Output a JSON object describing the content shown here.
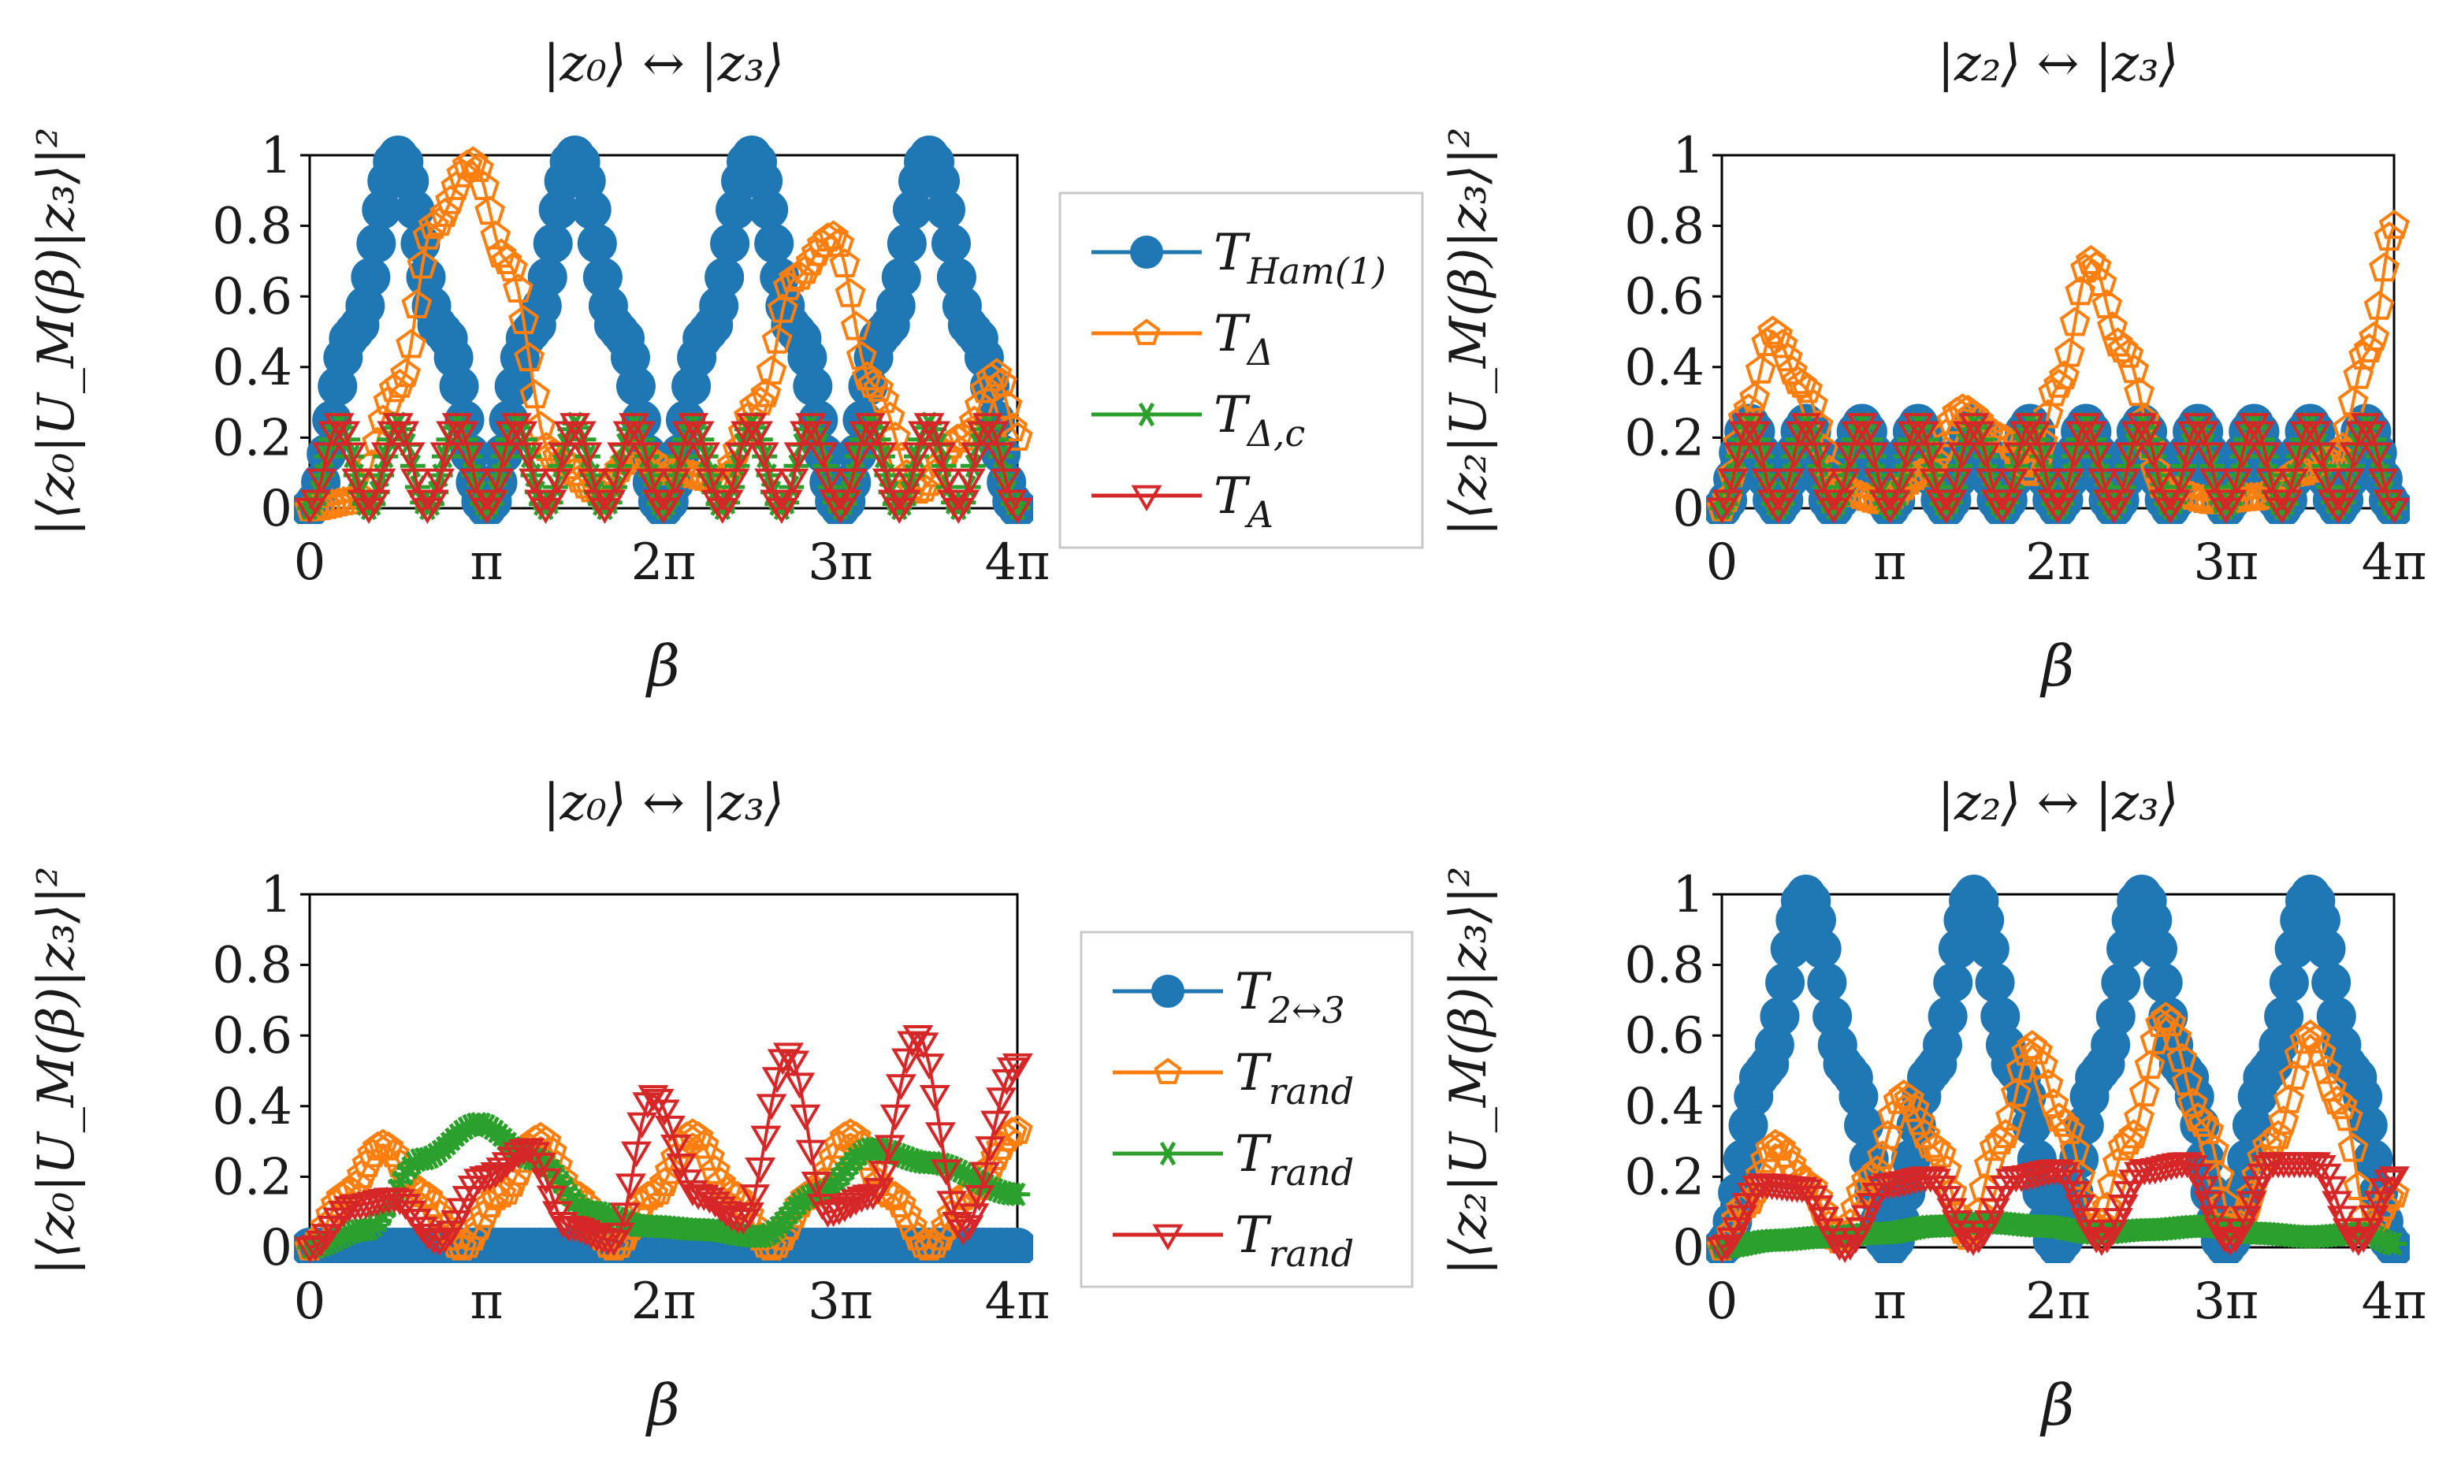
{
  "figure": {
    "tick_pi_symbol": "π"
  },
  "chart_data": [
    {
      "type": "line",
      "title": "|z₀⟩ ↔ |z₃⟩",
      "xlabel": "β",
      "ylabel": "|⟨z₀|U_M(β)|z₃⟩|²",
      "xlim": [
        0,
        12.566
      ],
      "ylim": [
        0,
        1
      ],
      "xticks": [
        0,
        3.1416,
        6.2832,
        9.4248,
        12.566
      ],
      "xtick_labels": [
        "0",
        "π",
        "2π",
        "3π",
        "4π"
      ],
      "yticks": [
        0,
        0.2,
        0.4,
        0.6,
        0.8,
        1
      ],
      "ytick_labels": [
        "0",
        "0.2",
        "0.4",
        "0.6",
        "0.8",
        "1"
      ],
      "legend_position": "right-outside",
      "series": [
        {
          "name": "T_Ham(1)",
          "color": "#1f77b4",
          "marker": "circle",
          "x": [
            0,
            0.79,
            1.57,
            2.36,
            3.14,
            3.93,
            4.71,
            5.5,
            6.28,
            7.07,
            7.85,
            8.64,
            9.42,
            10.21,
            11.0,
            11.78,
            12.57
          ],
          "y": [
            0,
            0.5,
            1.0,
            0.5,
            0,
            0.5,
            1.0,
            0.5,
            0,
            0.5,
            1.0,
            0.5,
            0,
            0.5,
            1.0,
            0.5,
            0
          ]
        },
        {
          "name": "T_Δ",
          "color": "#ff7f0e",
          "marker": "pentagon",
          "x": [
            0,
            0.8,
            1.6,
            2.2,
            2.9,
            3.5,
            4.3,
            5.1,
            5.8,
            6.5,
            7.3,
            8.0,
            8.6,
            9.3,
            10.0,
            10.8,
            11.6,
            12.2,
            12.57
          ],
          "y": [
            0,
            0.02,
            0.35,
            0.8,
            0.98,
            0.7,
            0.15,
            0.05,
            0.15,
            0.1,
            0.08,
            0.3,
            0.65,
            0.77,
            0.35,
            0.05,
            0.2,
            0.38,
            0.2
          ]
        },
        {
          "name": "T_Δ,c",
          "color": "#2ca02c",
          "marker": "star",
          "x": [
            0,
            0.52,
            1.05,
            1.57,
            2.09,
            2.62,
            3.14,
            3.67,
            4.19,
            4.71,
            5.24,
            5.76,
            6.28,
            6.81,
            7.33,
            7.85,
            8.38,
            8.9,
            9.42,
            9.95,
            10.47,
            11.0,
            11.52,
            12.04,
            12.57
          ],
          "y": [
            0,
            0.24,
            0,
            0.24,
            0,
            0.24,
            0,
            0.24,
            0,
            0.24,
            0,
            0.24,
            0,
            0.24,
            0,
            0.24,
            0,
            0.24,
            0,
            0.24,
            0,
            0.24,
            0,
            0.24,
            0
          ]
        },
        {
          "name": "T_A",
          "color": "#d62728",
          "marker": "triangle-down",
          "x": [
            0,
            0.52,
            1.05,
            1.57,
            2.09,
            2.62,
            3.14,
            3.67,
            4.19,
            4.71,
            5.24,
            5.76,
            6.28,
            6.81,
            7.33,
            7.85,
            8.38,
            8.9,
            9.42,
            9.95,
            10.47,
            11.0,
            11.52,
            12.04,
            12.57
          ],
          "y": [
            0,
            0.24,
            0,
            0.24,
            0,
            0.24,
            0,
            0.24,
            0,
            0.24,
            0,
            0.24,
            0,
            0.24,
            0,
            0.24,
            0,
            0.24,
            0,
            0.24,
            0,
            0.24,
            0,
            0.24,
            0
          ]
        }
      ]
    },
    {
      "type": "line",
      "title": "|z₂⟩ ↔ |z₃⟩",
      "xlabel": "β",
      "ylabel": "|⟨z₂|U_M(β)|z₃⟩|²",
      "xlim": [
        0,
        12.566
      ],
      "ylim": [
        0,
        1
      ],
      "xticks": [
        0,
        3.1416,
        6.2832,
        9.4248,
        12.566
      ],
      "xtick_labels": [
        "0",
        "π",
        "2π",
        "3π",
        "4π"
      ],
      "yticks": [
        0,
        0.2,
        0.4,
        0.6,
        0.8,
        1
      ],
      "ytick_labels": [
        "0",
        "0.2",
        "0.4",
        "0.6",
        "0.8",
        "1"
      ],
      "series": [
        {
          "name": "T_Ham(1)",
          "color": "#1f77b4",
          "marker": "circle",
          "x": [
            0,
            0.52,
            1.05,
            1.57,
            2.09,
            2.62,
            3.14,
            3.67,
            4.19,
            4.71,
            5.24,
            5.76,
            6.28,
            6.81,
            7.33,
            7.85,
            8.38,
            8.9,
            9.42,
            9.95,
            10.47,
            11.0,
            11.52,
            12.04,
            12.57
          ],
          "y": [
            0,
            0.24,
            0,
            0.24,
            0,
            0.24,
            0,
            0.24,
            0,
            0.24,
            0,
            0.24,
            0,
            0.24,
            0,
            0.24,
            0,
            0.24,
            0,
            0.24,
            0,
            0.24,
            0,
            0.24,
            0
          ]
        },
        {
          "name": "T_Δ",
          "color": "#ff7f0e",
          "marker": "pentagon",
          "x": [
            0,
            0.5,
            0.95,
            1.5,
            2.2,
            3.0,
            3.8,
            4.5,
            5.2,
            5.8,
            6.3,
            6.9,
            7.5,
            8.3,
            9.2,
            10.0,
            10.8,
            11.5,
            12.1,
            12.57
          ],
          "y": [
            0,
            0.28,
            0.5,
            0.35,
            0.05,
            0.02,
            0.1,
            0.28,
            0.2,
            0.1,
            0.35,
            0.7,
            0.45,
            0.05,
            0.02,
            0.03,
            0.1,
            0.15,
            0.45,
            0.8
          ]
        },
        {
          "name": "T_Δ,c",
          "color": "#2ca02c",
          "marker": "star",
          "x": [
            0,
            0.52,
            1.05,
            1.57,
            2.09,
            2.62,
            3.14,
            3.67,
            4.19,
            4.71,
            5.24,
            5.76,
            6.28,
            6.81,
            7.33,
            7.85,
            8.38,
            8.9,
            9.42,
            9.95,
            10.47,
            11.0,
            11.52,
            12.04,
            12.57
          ],
          "y": [
            0,
            0.24,
            0,
            0.24,
            0,
            0.24,
            0,
            0.24,
            0,
            0.24,
            0,
            0.24,
            0,
            0.24,
            0,
            0.24,
            0,
            0.24,
            0,
            0.24,
            0,
            0.24,
            0,
            0.24,
            0
          ]
        },
        {
          "name": "T_A",
          "color": "#d62728",
          "marker": "triangle-down",
          "x": [
            0,
            0.52,
            1.05,
            1.57,
            2.09,
            2.62,
            3.14,
            3.67,
            4.19,
            4.71,
            5.24,
            5.76,
            6.28,
            6.81,
            7.33,
            7.85,
            8.38,
            8.9,
            9.42,
            9.95,
            10.47,
            11.0,
            11.52,
            12.04,
            12.57
          ],
          "y": [
            0,
            0.24,
            0,
            0.24,
            0,
            0.24,
            0,
            0.24,
            0,
            0.24,
            0,
            0.24,
            0,
            0.24,
            0,
            0.24,
            0,
            0.24,
            0,
            0.24,
            0,
            0.24,
            0,
            0.24,
            0
          ]
        }
      ]
    },
    {
      "type": "line",
      "title": "|z₀⟩ ↔ |z₃⟩",
      "xlabel": "β",
      "ylabel": "|⟨z₀|U_M(β)|z₃⟩|²",
      "xlim": [
        0,
        12.566
      ],
      "ylim": [
        0,
        1
      ],
      "xticks": [
        0,
        3.1416,
        6.2832,
        9.4248,
        12.566
      ],
      "xtick_labels": [
        "0",
        "π",
        "2π",
        "3π",
        "4π"
      ],
      "yticks": [
        0,
        0.2,
        0.4,
        0.6,
        0.8,
        1
      ],
      "ytick_labels": [
        "0",
        "0.2",
        "0.4",
        "0.6",
        "0.8",
        "1"
      ],
      "legend_position": "right-outside",
      "series": [
        {
          "name": "T_2↔3",
          "color": "#1f77b4",
          "marker": "circle",
          "x": [
            0,
            12.57
          ],
          "y": [
            0,
            0
          ]
        },
        {
          "name": "T_rand",
          "color": "#ff7f0e",
          "marker": "pentagon",
          "x": [
            0,
            0.65,
            1.3,
            2.0,
            2.7,
            3.4,
            4.1,
            4.7,
            5.4,
            6.1,
            6.8,
            7.5,
            8.2,
            8.9,
            9.6,
            10.3,
            11.0,
            11.7,
            12.57
          ],
          "y": [
            0,
            0.15,
            0.29,
            0.15,
            0,
            0.15,
            0.31,
            0.15,
            0,
            0.15,
            0.32,
            0.15,
            0,
            0.15,
            0.32,
            0.15,
            0,
            0.15,
            0.33
          ]
        },
        {
          "name": "T_rand",
          "color": "#2ca02c",
          "marker": "star",
          "x": [
            0,
            1.0,
            2.0,
            3.0,
            4.0,
            5.0,
            6.0,
            7.0,
            8.0,
            9.0,
            10.0,
            11.0,
            12.57
          ],
          "y": [
            0,
            0.05,
            0.25,
            0.35,
            0.25,
            0.1,
            0.06,
            0.05,
            0.03,
            0.15,
            0.28,
            0.24,
            0.15
          ]
        },
        {
          "name": "T_rand",
          "color": "#d62728",
          "marker": "triangle-down",
          "x": [
            0,
            0.8,
            1.5,
            2.3,
            3.1,
            3.9,
            4.6,
            5.4,
            6.1,
            6.9,
            7.7,
            8.5,
            9.2,
            10.0,
            10.8,
            11.6,
            12.57
          ],
          "y": [
            0,
            0.12,
            0.14,
            0.02,
            0.2,
            0.28,
            0.06,
            0.02,
            0.43,
            0.15,
            0.08,
            0.55,
            0.1,
            0.15,
            0.6,
            0.05,
            0.52
          ]
        }
      ]
    },
    {
      "type": "line",
      "title": "|z₂⟩ ↔ |z₃⟩",
      "xlabel": "β",
      "ylabel": "|⟨z₂|U_M(β)|z₃⟩|²",
      "xlim": [
        0,
        12.566
      ],
      "ylim": [
        0,
        1
      ],
      "xticks": [
        0,
        3.1416,
        6.2832,
        9.4248,
        12.566
      ],
      "xtick_labels": [
        "0",
        "π",
        "2π",
        "3π",
        "4π"
      ],
      "yticks": [
        0,
        0.2,
        0.4,
        0.6,
        0.8,
        1
      ],
      "ytick_labels": [
        "0",
        "0.2",
        "0.4",
        "0.6",
        "0.8",
        "1"
      ],
      "series": [
        {
          "name": "T_2↔3",
          "color": "#1f77b4",
          "marker": "circle",
          "x": [
            0,
            0.79,
            1.57,
            2.36,
            3.14,
            3.93,
            4.71,
            5.5,
            6.28,
            7.07,
            7.85,
            8.64,
            9.42,
            10.21,
            11.0,
            11.78,
            12.57
          ],
          "y": [
            0,
            0.5,
            1.0,
            0.5,
            0,
            0.5,
            1.0,
            0.5,
            0,
            0.5,
            1.0,
            0.5,
            0,
            0.5,
            1.0,
            0.5,
            0
          ]
        },
        {
          "name": "T_rand",
          "color": "#ff7f0e",
          "marker": "pentagon",
          "x": [
            0,
            0.45,
            1.0,
            1.6,
            2.2,
            2.8,
            3.4,
            4.0,
            4.6,
            5.2,
            5.8,
            6.4,
            7.0,
            7.6,
            8.3,
            9.0,
            9.6,
            10.3,
            11.0,
            11.6,
            12.1,
            12.57
          ],
          "y": [
            0,
            0.12,
            0.29,
            0.18,
            0.02,
            0.2,
            0.43,
            0.28,
            0.03,
            0.3,
            0.57,
            0.35,
            0.05,
            0.3,
            0.65,
            0.35,
            0.05,
            0.3,
            0.6,
            0.4,
            0.05,
            0.15
          ]
        },
        {
          "name": "T_rand",
          "color": "#2ca02c",
          "marker": "star",
          "x": [
            0,
            1.0,
            2.0,
            3.0,
            4.0,
            5.0,
            6.0,
            7.0,
            8.0,
            9.0,
            10.0,
            11.0,
            12.0,
            12.57
          ],
          "y": [
            0,
            0.02,
            0.03,
            0.04,
            0.06,
            0.07,
            0.06,
            0.04,
            0.05,
            0.06,
            0.04,
            0.03,
            0.04,
            0.01
          ]
        },
        {
          "name": "T_rand",
          "color": "#d62728",
          "marker": "triangle-down",
          "x": [
            0,
            0.75,
            1.5,
            2.3,
            3.1,
            3.9,
            4.7,
            5.5,
            6.3,
            7.1,
            7.9,
            8.7,
            9.5,
            10.3,
            11.1,
            11.9,
            12.57
          ],
          "y": [
            0,
            0.18,
            0.17,
            0,
            0.18,
            0.2,
            0.02,
            0.2,
            0.22,
            0.02,
            0.22,
            0.24,
            0.02,
            0.24,
            0.24,
            0.02,
            0.2
          ]
        }
      ]
    }
  ],
  "legends": [
    {
      "entries": [
        {
          "base": "T",
          "sub": "Ham(1)",
          "color": "#1f77b4",
          "marker": "circle"
        },
        {
          "base": "T",
          "sub": "Δ",
          "color": "#ff7f0e",
          "marker": "pentagon"
        },
        {
          "base": "T",
          "sub": "Δ,c",
          "color": "#2ca02c",
          "marker": "star"
        },
        {
          "base": "T",
          "sub": "A",
          "color": "#d62728",
          "marker": "triangle-down"
        }
      ]
    },
    {
      "entries": [
        {
          "base": "T",
          "sub": "2↔3",
          "color": "#1f77b4",
          "marker": "circle"
        },
        {
          "base": "T",
          "sub": "rand",
          "color": "#ff7f0e",
          "marker": "pentagon"
        },
        {
          "base": "T",
          "sub": "rand",
          "color": "#2ca02c",
          "marker": "star"
        },
        {
          "base": "T",
          "sub": "rand",
          "color": "#d62728",
          "marker": "triangle-down"
        }
      ]
    }
  ]
}
